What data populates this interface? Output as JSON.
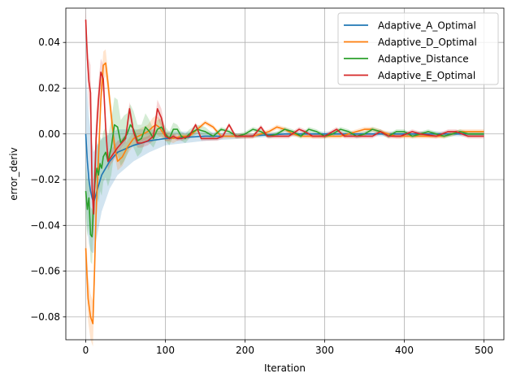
{
  "chart_data": {
    "type": "line",
    "title": "",
    "xlabel": "Iteration",
    "ylabel": "error_deriv",
    "xlim": [
      -25,
      525
    ],
    "ylim": [
      -0.09,
      0.055
    ],
    "xticks": [
      0,
      100,
      200,
      300,
      400,
      500
    ],
    "xtick_labels": [
      "0",
      "100",
      "200",
      "300",
      "400",
      "500"
    ],
    "yticks": [
      -0.08,
      -0.06,
      -0.04,
      -0.02,
      0.0,
      0.02,
      0.04
    ],
    "ytick_labels": [
      "−0.08",
      "−0.06",
      "−0.04",
      "−0.02",
      "0.00",
      "0.02",
      "0.04"
    ],
    "grid": true,
    "legend_position": "top-right",
    "series": [
      {
        "name": "Adaptive_A_Optimal",
        "color": "#1f77b4",
        "x": [
          0,
          2,
          4,
          6,
          8,
          10,
          14,
          20,
          30,
          40,
          60,
          80,
          100,
          150,
          200,
          250,
          300,
          350,
          400,
          450,
          500
        ],
        "y": [
          0.0,
          -0.012,
          -0.02,
          -0.025,
          -0.028,
          -0.03,
          -0.025,
          -0.018,
          -0.012,
          -0.008,
          -0.005,
          -0.003,
          -0.002,
          -0.001,
          -0.001,
          0.0,
          0.0,
          0.0,
          0.0,
          0.0,
          0.0
        ],
        "band": [
          0.03,
          0.03,
          0.028,
          0.026,
          0.024,
          0.022,
          0.02,
          0.016,
          0.012,
          0.01,
          0.007,
          0.005,
          0.003,
          0.002,
          0.001,
          0.001,
          0.001,
          0.001,
          0.001,
          0.001,
          0.001
        ]
      },
      {
        "name": "Adaptive_D_Optimal",
        "color": "#ff7f0e",
        "x": [
          0,
          3,
          6,
          9,
          11,
          13,
          16,
          19,
          22,
          25,
          28,
          32,
          36,
          40,
          46,
          52,
          56,
          60,
          66,
          72,
          78,
          84,
          88,
          92,
          96,
          100,
          110,
          120,
          130,
          140,
          150,
          155,
          160,
          170,
          180,
          190,
          200,
          210,
          220,
          230,
          240,
          250,
          260,
          270,
          280,
          290,
          300,
          310,
          320,
          330,
          340,
          350,
          360,
          370,
          380,
          390,
          400,
          410,
          420,
          430,
          440,
          450,
          460,
          470,
          480,
          490,
          500
        ],
        "y": [
          -0.05,
          -0.072,
          -0.08,
          -0.083,
          -0.06,
          -0.035,
          -0.01,
          0.015,
          0.03,
          0.031,
          0.022,
          0.008,
          -0.005,
          -0.012,
          -0.01,
          -0.006,
          -0.004,
          -0.002,
          -0.001,
          0.0,
          0.001,
          0.003,
          0.004,
          0.003,
          0.001,
          -0.001,
          -0.002,
          -0.001,
          -0.001,
          0.002,
          0.005,
          0.004,
          0.003,
          -0.001,
          -0.001,
          -0.001,
          -0.001,
          -0.001,
          0.0,
          0.001,
          0.003,
          0.002,
          0.0,
          -0.001,
          -0.001,
          -0.001,
          -0.001,
          -0.001,
          -0.001,
          0.0,
          0.001,
          0.002,
          0.002,
          0.001,
          0.0,
          -0.001,
          -0.001,
          -0.001,
          -0.001,
          -0.001,
          -0.001,
          -0.001,
          0.0,
          0.001,
          0.001,
          0.001,
          0.001
        ],
        "band": [
          0.01,
          0.01,
          0.01,
          0.01,
          0.01,
          0.008,
          0.006,
          0.006,
          0.006,
          0.006,
          0.005,
          0.005,
          0.004,
          0.004,
          0.004,
          0.003,
          0.003,
          0.003,
          0.003,
          0.003,
          0.003,
          0.004,
          0.004,
          0.004,
          0.003,
          0.002,
          0.002,
          0.001,
          0.001,
          0.001,
          0.001,
          0.001,
          0.001,
          0.001,
          0.001,
          0.001,
          0.001,
          0.001,
          0.001,
          0.001,
          0.001,
          0.001,
          0.001,
          0.001,
          0.001,
          0.001,
          0.001,
          0.001,
          0.001,
          0.001,
          0.001,
          0.001,
          0.001,
          0.001,
          0.001,
          0.001,
          0.001,
          0.001,
          0.001,
          0.001,
          0.001,
          0.001,
          0.001,
          0.001,
          0.001,
          0.001,
          0.001
        ]
      },
      {
        "name": "Adaptive_Distance",
        "color": "#2ca02c",
        "x": [
          0,
          2,
          4,
          6,
          8,
          10,
          12,
          14,
          16,
          18,
          20,
          22,
          25,
          28,
          32,
          36,
          40,
          44,
          48,
          52,
          56,
          60,
          65,
          70,
          75,
          80,
          85,
          90,
          95,
          100,
          105,
          110,
          115,
          120,
          125,
          130,
          140,
          150,
          160,
          170,
          180,
          190,
          200,
          210,
          220,
          230,
          240,
          250,
          260,
          270,
          280,
          290,
          300,
          310,
          320,
          330,
          340,
          350,
          360,
          370,
          380,
          390,
          400,
          410,
          420,
          430,
          440,
          450,
          460,
          470,
          480,
          490,
          500
        ],
        "y": [
          -0.025,
          -0.033,
          -0.028,
          -0.044,
          -0.045,
          -0.028,
          -0.02,
          -0.015,
          -0.018,
          -0.013,
          -0.015,
          -0.01,
          -0.008,
          -0.012,
          -0.006,
          0.004,
          0.003,
          -0.004,
          -0.002,
          0.0,
          0.004,
          0.002,
          -0.003,
          -0.002,
          0.003,
          0.001,
          -0.002,
          0.002,
          0.003,
          0.0,
          -0.002,
          0.002,
          0.002,
          -0.001,
          -0.002,
          0.0,
          0.002,
          0.001,
          -0.001,
          0.002,
          0.001,
          -0.001,
          0.0,
          0.002,
          0.001,
          -0.001,
          0.0,
          0.002,
          0.001,
          -0.001,
          0.002,
          0.001,
          -0.001,
          0.0,
          0.002,
          0.001,
          -0.001,
          0.0,
          0.002,
          0.001,
          -0.001,
          0.001,
          0.001,
          -0.001,
          0.0,
          0.001,
          0.0,
          -0.001,
          0.0,
          0.001,
          0.0,
          0.0,
          0.0
        ],
        "band": [
          0.012,
          0.012,
          0.012,
          0.012,
          0.012,
          0.012,
          0.012,
          0.012,
          0.012,
          0.012,
          0.012,
          0.011,
          0.011,
          0.011,
          0.012,
          0.012,
          0.012,
          0.01,
          0.01,
          0.009,
          0.009,
          0.008,
          0.007,
          0.006,
          0.006,
          0.005,
          0.004,
          0.004,
          0.004,
          0.003,
          0.003,
          0.003,
          0.002,
          0.002,
          0.002,
          0.002,
          0.002,
          0.002,
          0.001,
          0.001,
          0.001,
          0.001,
          0.001,
          0.001,
          0.001,
          0.001,
          0.001,
          0.001,
          0.001,
          0.001,
          0.001,
          0.001,
          0.001,
          0.001,
          0.001,
          0.001,
          0.001,
          0.001,
          0.001,
          0.001,
          0.001,
          0.001,
          0.001,
          0.001,
          0.001,
          0.001,
          0.001,
          0.001,
          0.001,
          0.001,
          0.001,
          0.001,
          0.001
        ]
      },
      {
        "name": "Adaptive_E_Optimal",
        "color": "#d62728",
        "x": [
          0,
          2,
          4,
          6,
          8,
          10,
          13,
          16,
          19,
          22,
          25,
          28,
          32,
          36,
          40,
          45,
          50,
          55,
          60,
          65,
          70,
          78,
          85,
          90,
          95,
          100,
          105,
          110,
          115,
          120,
          130,
          138,
          145,
          155,
          165,
          172,
          180,
          188,
          200,
          210,
          220,
          228,
          240,
          255,
          268,
          275,
          285,
          300,
          315,
          325,
          340,
          360,
          370,
          380,
          395,
          410,
          420,
          440,
          455,
          465,
          480,
          500
        ],
        "y": [
          0.05,
          0.033,
          0.023,
          0.018,
          -0.024,
          -0.035,
          -0.002,
          0.015,
          0.027,
          0.024,
          0.003,
          -0.012,
          -0.01,
          -0.008,
          -0.006,
          -0.004,
          -0.002,
          0.011,
          0.001,
          -0.004,
          -0.004,
          -0.003,
          -0.001,
          0.011,
          0.007,
          -0.001,
          -0.002,
          -0.001,
          -0.002,
          -0.002,
          -0.001,
          0.004,
          -0.002,
          -0.002,
          -0.002,
          -0.001,
          0.004,
          -0.001,
          -0.001,
          -0.001,
          0.003,
          -0.001,
          -0.001,
          -0.001,
          0.002,
          0.001,
          -0.001,
          -0.001,
          0.002,
          -0.001,
          -0.001,
          -0.001,
          0.001,
          -0.001,
          -0.001,
          0.001,
          0.0,
          -0.001,
          0.001,
          0.001,
          -0.001,
          -0.001
        ],
        "band": [
          0.005,
          0.007,
          0.01,
          0.012,
          0.012,
          0.012,
          0.01,
          0.008,
          0.006,
          0.006,
          0.005,
          0.004,
          0.003,
          0.003,
          0.003,
          0.002,
          0.002,
          0.003,
          0.002,
          0.002,
          0.002,
          0.002,
          0.002,
          0.004,
          0.004,
          0.002,
          0.001,
          0.001,
          0.001,
          0.001,
          0.001,
          0.001,
          0.001,
          0.001,
          0.001,
          0.001,
          0.001,
          0.001,
          0.001,
          0.001,
          0.001,
          0.001,
          0.001,
          0.001,
          0.001,
          0.001,
          0.001,
          0.001,
          0.001,
          0.001,
          0.001,
          0.001,
          0.001,
          0.001,
          0.001,
          0.001,
          0.001,
          0.001,
          0.001,
          0.001,
          0.001,
          0.001
        ]
      }
    ]
  }
}
